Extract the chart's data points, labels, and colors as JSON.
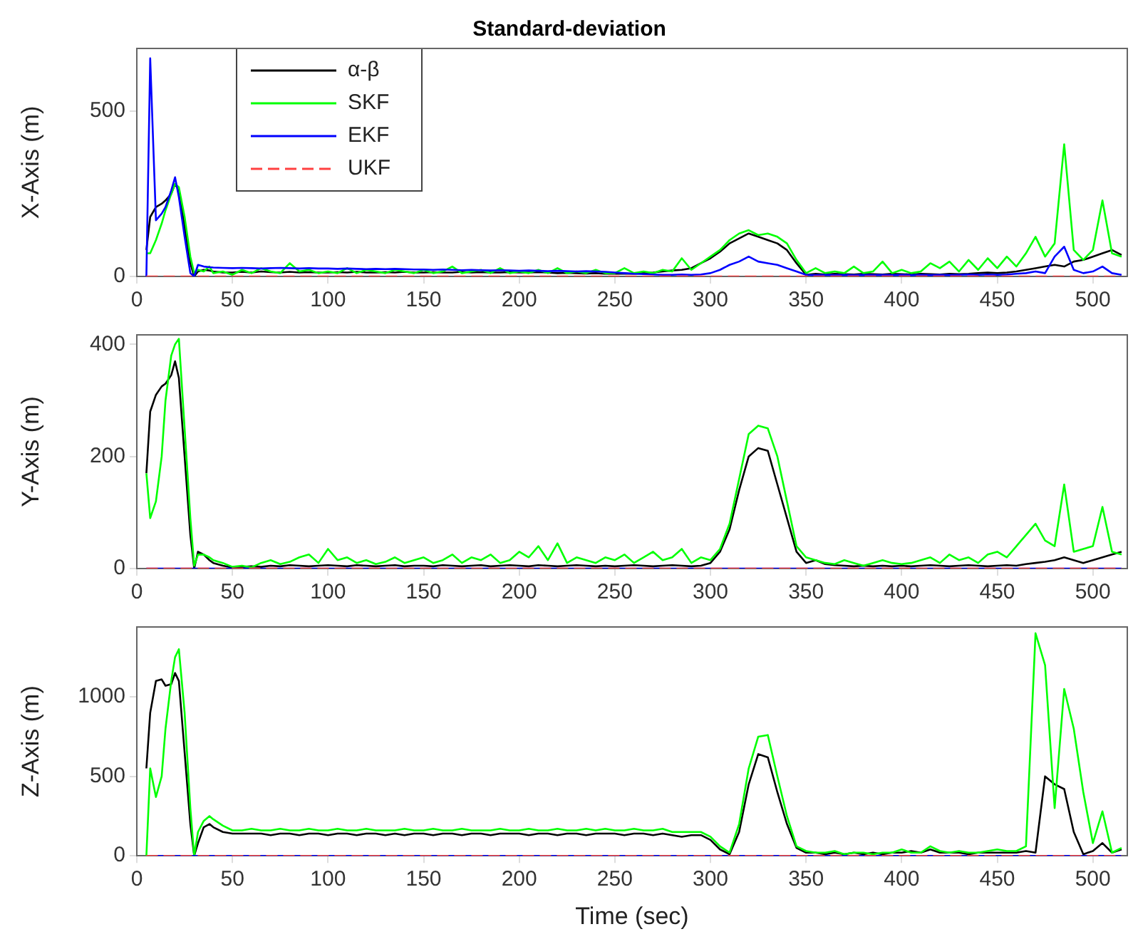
{
  "chart_data": [
    {
      "type": "line",
      "title": "Standard-deviation",
      "ylabel": "X-Axis (m)",
      "legend": "top left",
      "grid": false,
      "marker": "none",
      "xlim": [
        0,
        518
      ],
      "xticks": [
        0,
        50,
        100,
        150,
        200,
        250,
        300,
        350,
        400,
        450,
        500
      ],
      "ylim": [
        0,
        690
      ],
      "yticks": [
        0,
        500
      ],
      "x": [
        5,
        7,
        10,
        13,
        15,
        18,
        20,
        22,
        25,
        28,
        30,
        32,
        35,
        38,
        40,
        45,
        50,
        55,
        60,
        65,
        70,
        75,
        80,
        85,
        90,
        95,
        100,
        105,
        110,
        115,
        120,
        125,
        130,
        135,
        140,
        145,
        150,
        155,
        160,
        165,
        170,
        175,
        180,
        185,
        190,
        195,
        200,
        205,
        210,
        215,
        220,
        225,
        230,
        235,
        240,
        245,
        250,
        255,
        260,
        265,
        270,
        275,
        280,
        285,
        290,
        295,
        300,
        305,
        310,
        315,
        320,
        325,
        330,
        335,
        340,
        345,
        350,
        355,
        360,
        365,
        370,
        375,
        380,
        385,
        390,
        395,
        400,
        405,
        410,
        415,
        420,
        425,
        430,
        435,
        440,
        445,
        450,
        455,
        460,
        465,
        470,
        475,
        480,
        485,
        490,
        495,
        500,
        505,
        510,
        515
      ],
      "series": [
        {
          "name": "α-β",
          "color": "#000000",
          "line_style": "solid",
          "values": [
            80,
            180,
            210,
            220,
            230,
            250,
            280,
            260,
            150,
            40,
            0,
            15,
            20,
            18,
            15,
            12,
            12,
            14,
            12,
            15,
            13,
            12,
            14,
            12,
            13,
            12,
            12,
            13,
            12,
            14,
            12,
            12,
            13,
            12,
            14,
            12,
            12,
            13,
            12,
            12,
            14,
            12,
            13,
            12,
            12,
            13,
            12,
            12,
            13,
            12,
            10,
            11,
            10,
            9,
            10,
            8,
            8,
            9,
            8,
            10,
            12,
            15,
            18,
            20,
            25,
            40,
            55,
            75,
            100,
            115,
            130,
            120,
            110,
            100,
            80,
            40,
            5,
            8,
            6,
            8,
            7,
            6,
            8,
            7,
            6,
            8,
            7,
            6,
            8,
            7,
            6,
            8,
            7,
            8,
            10,
            12,
            10,
            12,
            15,
            20,
            25,
            30,
            35,
            30,
            45,
            50,
            60,
            70,
            80,
            65
          ]
        },
        {
          "name": "SKF",
          "color": "#00ff00",
          "line_style": "solid",
          "values": [
            70,
            70,
            110,
            160,
            200,
            250,
            280,
            270,
            180,
            60,
            10,
            20,
            15,
            30,
            10,
            15,
            5,
            20,
            10,
            25,
            15,
            10,
            40,
            15,
            20,
            10,
            15,
            10,
            25,
            10,
            20,
            15,
            10,
            20,
            15,
            10,
            20,
            10,
            15,
            30,
            10,
            15,
            20,
            10,
            25,
            10,
            15,
            10,
            20,
            10,
            25,
            10,
            15,
            10,
            20,
            10,
            10,
            25,
            10,
            15,
            10,
            20,
            15,
            55,
            20,
            40,
            60,
            80,
            110,
            130,
            140,
            125,
            130,
            120,
            100,
            50,
            10,
            25,
            10,
            15,
            10,
            30,
            10,
            15,
            45,
            10,
            20,
            10,
            15,
            40,
            25,
            45,
            15,
            50,
            20,
            55,
            25,
            60,
            30,
            70,
            120,
            60,
            100,
            400,
            80,
            50,
            80,
            230,
            70,
            60
          ]
        },
        {
          "name": "EKF",
          "color": "#0000ff",
          "line_style": "solid",
          "values": [
            0,
            660,
            170,
            190,
            210,
            260,
            300,
            240,
            120,
            10,
            0,
            35,
            30,
            28,
            27,
            26,
            25,
            26,
            25,
            24,
            25,
            26,
            25,
            24,
            25,
            24,
            24,
            23,
            24,
            23,
            22,
            23,
            22,
            23,
            22,
            21,
            21,
            20,
            21,
            20,
            19,
            20,
            19,
            18,
            19,
            18,
            17,
            18,
            17,
            16,
            17,
            16,
            15,
            16,
            15,
            14,
            12,
            10,
            8,
            7,
            6,
            5,
            5,
            6,
            5,
            6,
            10,
            20,
            35,
            45,
            60,
            45,
            40,
            35,
            25,
            15,
            5,
            4,
            5,
            4,
            5,
            4,
            5,
            4,
            5,
            4,
            5,
            4,
            5,
            4,
            5,
            4,
            5,
            6,
            5,
            6,
            5,
            6,
            8,
            10,
            15,
            10,
            60,
            90,
            20,
            10,
            15,
            30,
            10,
            5
          ]
        },
        {
          "name": "UKF",
          "color": "#ff4040",
          "line_style": "dashed",
          "values": [
            0,
            0,
            0,
            0,
            0,
            0,
            0,
            0,
            0,
            0,
            0,
            0,
            0,
            0,
            0,
            0,
            0,
            0,
            0,
            0,
            0,
            0,
            0,
            0,
            0,
            0,
            0,
            0,
            0,
            0,
            0,
            0,
            0,
            0,
            0,
            0,
            0,
            0,
            0,
            0,
            0,
            0,
            0,
            0,
            0,
            0,
            0,
            0,
            0,
            0,
            0,
            0,
            0,
            0,
            0,
            0,
            0,
            0,
            0,
            0,
            0,
            0,
            0,
            0,
            0,
            0,
            0,
            0,
            0,
            0,
            0,
            0,
            0,
            0,
            0,
            0,
            0,
            0,
            0,
            0,
            0,
            0,
            0,
            0,
            0,
            0,
            0,
            0,
            0,
            0,
            0,
            0,
            0,
            0,
            0,
            0,
            0,
            0,
            0,
            0,
            0,
            0,
            0,
            0,
            0,
            0,
            0,
            0,
            0,
            0
          ]
        }
      ]
    },
    {
      "type": "line",
      "ylabel": "Y-Axis (m)",
      "grid": false,
      "marker": "none",
      "xlim": [
        0,
        518
      ],
      "xticks": [
        0,
        50,
        100,
        150,
        200,
        250,
        300,
        350,
        400,
        450,
        500
      ],
      "ylim": [
        0,
        417
      ],
      "yticks": [
        0,
        200,
        400
      ],
      "x": [
        5,
        7,
        10,
        13,
        15,
        18,
        20,
        22,
        25,
        28,
        30,
        32,
        35,
        38,
        40,
        45,
        50,
        55,
        60,
        65,
        70,
        75,
        80,
        85,
        90,
        95,
        100,
        105,
        110,
        115,
        120,
        125,
        130,
        135,
        140,
        145,
        150,
        155,
        160,
        165,
        170,
        175,
        180,
        185,
        190,
        195,
        200,
        205,
        210,
        215,
        220,
        225,
        230,
        235,
        240,
        245,
        250,
        255,
        260,
        265,
        270,
        275,
        280,
        285,
        290,
        295,
        300,
        305,
        310,
        315,
        320,
        325,
        330,
        335,
        340,
        345,
        350,
        355,
        360,
        365,
        370,
        375,
        380,
        385,
        390,
        395,
        400,
        405,
        410,
        415,
        420,
        425,
        430,
        435,
        440,
        445,
        450,
        455,
        460,
        465,
        470,
        475,
        480,
        485,
        490,
        495,
        500,
        505,
        510,
        515
      ],
      "series": [
        {
          "color": "#000000",
          "line_style": "solid",
          "values": [
            170,
            280,
            310,
            325,
            330,
            345,
            370,
            340,
            200,
            60,
            0,
            30,
            25,
            15,
            10,
            5,
            2,
            3,
            4,
            3,
            5,
            4,
            6,
            5,
            4,
            5,
            6,
            5,
            4,
            6,
            5,
            4,
            5,
            6,
            4,
            5,
            5,
            4,
            6,
            5,
            4,
            5,
            6,
            4,
            5,
            6,
            5,
            4,
            6,
            5,
            4,
            5,
            6,
            5,
            4,
            5,
            4,
            5,
            6,
            5,
            4,
            5,
            6,
            5,
            4,
            5,
            10,
            30,
            70,
            140,
            200,
            215,
            210,
            150,
            90,
            30,
            10,
            15,
            8,
            6,
            5,
            4,
            5,
            4,
            5,
            4,
            5,
            4,
            5,
            6,
            5,
            4,
            5,
            6,
            5,
            4,
            5,
            6,
            5,
            8,
            10,
            12,
            15,
            20,
            15,
            10,
            15,
            20,
            25,
            30
          ]
        },
        {
          "color": "#00ff00",
          "line_style": "solid",
          "values": [
            170,
            90,
            120,
            200,
            300,
            380,
            400,
            410,
            250,
            90,
            5,
            25,
            25,
            20,
            15,
            10,
            3,
            5,
            2,
            10,
            15,
            8,
            12,
            20,
            25,
            10,
            35,
            15,
            20,
            10,
            15,
            8,
            12,
            20,
            10,
            15,
            20,
            10,
            15,
            25,
            10,
            20,
            15,
            25,
            10,
            15,
            30,
            20,
            40,
            15,
            45,
            10,
            20,
            15,
            10,
            20,
            15,
            25,
            10,
            20,
            30,
            15,
            20,
            35,
            10,
            20,
            15,
            35,
            80,
            160,
            240,
            255,
            250,
            200,
            120,
            40,
            20,
            15,
            10,
            8,
            15,
            10,
            5,
            10,
            15,
            10,
            8,
            10,
            15,
            20,
            10,
            25,
            15,
            20,
            10,
            25,
            30,
            20,
            40,
            60,
            80,
            50,
            40,
            150,
            30,
            35,
            40,
            110,
            30,
            25
          ]
        },
        {
          "color": "#0000ff",
          "line_style": "solid",
          "values": [
            0,
            0,
            0,
            0,
            0,
            0,
            0,
            0,
            0,
            0,
            0,
            0,
            0,
            0,
            0,
            0,
            0,
            0,
            0,
            0,
            0,
            0,
            0,
            0,
            0,
            0,
            0,
            0,
            0,
            0,
            0,
            0,
            0,
            0,
            0,
            0,
            0,
            0,
            0,
            0,
            0,
            0,
            0,
            0,
            0,
            0,
            0,
            0,
            0,
            0,
            0,
            0,
            0,
            0,
            0,
            0,
            0,
            0,
            0,
            0,
            0,
            0,
            0,
            0,
            0,
            0,
            0,
            0,
            0,
            0,
            0,
            0,
            0,
            0,
            0,
            0,
            0,
            0,
            0,
            0,
            0,
            0,
            0,
            0,
            0,
            0,
            0,
            0,
            0,
            0,
            0,
            0,
            0,
            0,
            0,
            0,
            0,
            0,
            0,
            0,
            0,
            0,
            0,
            0,
            0,
            0,
            0,
            0,
            0,
            0
          ]
        },
        {
          "color": "#ff4040",
          "line_style": "dashed",
          "values": [
            0,
            0,
            0,
            0,
            0,
            0,
            0,
            0,
            0,
            0,
            0,
            0,
            0,
            0,
            0,
            0,
            0,
            0,
            0,
            0,
            0,
            0,
            0,
            0,
            0,
            0,
            0,
            0,
            0,
            0,
            0,
            0,
            0,
            0,
            0,
            0,
            0,
            0,
            0,
            0,
            0,
            0,
            0,
            0,
            0,
            0,
            0,
            0,
            0,
            0,
            0,
            0,
            0,
            0,
            0,
            0,
            0,
            0,
            0,
            0,
            0,
            0,
            0,
            0,
            0,
            0,
            0,
            0,
            0,
            0,
            0,
            0,
            0,
            0,
            0,
            0,
            0,
            0,
            0,
            0,
            0,
            0,
            0,
            0,
            0,
            0,
            0,
            0,
            0,
            0,
            0,
            0,
            0,
            0,
            0,
            0,
            0,
            0,
            0,
            0,
            0,
            0,
            0,
            0,
            0,
            0,
            0,
            0,
            0,
            0
          ]
        }
      ]
    },
    {
      "type": "line",
      "ylabel": "Z-Axis (m)",
      "xlabel": "Time (sec)",
      "grid": false,
      "marker": "none",
      "xlim": [
        0,
        518
      ],
      "xticks": [
        0,
        50,
        100,
        150,
        200,
        250,
        300,
        350,
        400,
        450,
        500
      ],
      "ylim": [
        0,
        1440
      ],
      "yticks": [
        0,
        500,
        1000
      ],
      "x": [
        5,
        7,
        10,
        13,
        15,
        18,
        20,
        22,
        25,
        28,
        30,
        32,
        35,
        38,
        40,
        45,
        50,
        55,
        60,
        65,
        70,
        75,
        80,
        85,
        90,
        95,
        100,
        105,
        110,
        115,
        120,
        125,
        130,
        135,
        140,
        145,
        150,
        155,
        160,
        165,
        170,
        175,
        180,
        185,
        190,
        195,
        200,
        205,
        210,
        215,
        220,
        225,
        230,
        235,
        240,
        245,
        250,
        255,
        260,
        265,
        270,
        275,
        280,
        285,
        290,
        295,
        300,
        305,
        310,
        315,
        320,
        325,
        330,
        335,
        340,
        345,
        350,
        355,
        360,
        365,
        370,
        375,
        380,
        385,
        390,
        395,
        400,
        405,
        410,
        415,
        420,
        425,
        430,
        435,
        440,
        445,
        450,
        455,
        460,
        465,
        470,
        475,
        480,
        485,
        490,
        495,
        500,
        505,
        510,
        515
      ],
      "series": [
        {
          "color": "#000000",
          "line_style": "solid",
          "values": [
            550,
            900,
            1100,
            1110,
            1070,
            1080,
            1150,
            1100,
            650,
            200,
            0,
            80,
            180,
            200,
            180,
            150,
            140,
            140,
            140,
            140,
            130,
            140,
            140,
            130,
            140,
            140,
            130,
            140,
            140,
            130,
            140,
            140,
            130,
            140,
            130,
            140,
            140,
            130,
            140,
            140,
            130,
            140,
            140,
            130,
            140,
            140,
            140,
            130,
            140,
            140,
            130,
            140,
            140,
            130,
            140,
            140,
            140,
            130,
            140,
            140,
            130,
            140,
            130,
            120,
            130,
            130,
            100,
            40,
            10,
            150,
            450,
            640,
            620,
            400,
            200,
            50,
            20,
            20,
            10,
            20,
            10,
            20,
            10,
            20,
            10,
            20,
            20,
            30,
            20,
            40,
            20,
            20,
            20,
            10,
            20,
            20,
            20,
            20,
            20,
            30,
            20,
            500,
            450,
            420,
            150,
            10,
            30,
            80,
            20,
            40
          ]
        },
        {
          "color": "#00ff00",
          "line_style": "solid",
          "values": [
            0,
            550,
            370,
            500,
            800,
            1100,
            1250,
            1300,
            900,
            300,
            0,
            150,
            220,
            250,
            230,
            190,
            160,
            160,
            170,
            160,
            160,
            170,
            160,
            160,
            170,
            160,
            160,
            170,
            160,
            160,
            170,
            160,
            160,
            160,
            170,
            160,
            160,
            170,
            160,
            160,
            170,
            160,
            160,
            160,
            170,
            160,
            160,
            170,
            160,
            160,
            170,
            160,
            160,
            170,
            160,
            170,
            160,
            160,
            170,
            160,
            160,
            170,
            150,
            150,
            150,
            150,
            120,
            60,
            20,
            200,
            550,
            750,
            760,
            500,
            250,
            60,
            30,
            20,
            20,
            30,
            10,
            20,
            20,
            10,
            20,
            20,
            40,
            20,
            20,
            60,
            30,
            20,
            30,
            20,
            20,
            30,
            40,
            30,
            30,
            60,
            1400,
            1200,
            300,
            1050,
            800,
            400,
            80,
            280,
            20,
            50
          ]
        },
        {
          "color": "#0000ff",
          "line_style": "solid",
          "values": [
            null,
            null,
            0,
            0,
            0,
            0,
            0,
            0,
            0,
            0,
            0,
            0,
            0,
            0,
            0,
            0,
            0,
            0,
            0,
            0,
            0,
            0,
            0,
            0,
            0,
            0,
            0,
            0,
            0,
            0,
            0,
            0,
            0,
            0,
            0,
            0,
            0,
            0,
            0,
            0,
            0,
            0,
            0,
            0,
            0,
            0,
            0,
            0,
            0,
            0,
            0,
            0,
            0,
            0,
            0,
            0,
            0,
            0,
            0,
            0,
            0,
            0,
            0,
            0,
            0,
            0,
            0,
            0,
            0,
            0,
            0,
            0,
            0,
            0,
            0,
            0,
            0,
            0,
            0,
            0,
            0,
            0,
            0,
            0,
            0,
            0,
            0,
            0,
            0,
            0,
            0,
            0,
            0,
            0,
            0,
            0,
            0,
            0,
            0,
            0,
            0,
            0,
            0,
            0,
            0,
            0,
            0,
            0,
            0,
            0
          ]
        },
        {
          "color": "#ff4040",
          "line_style": "dashed",
          "values": [
            0,
            0,
            0,
            0,
            0,
            0,
            0,
            0,
            0,
            0,
            0,
            0,
            0,
            0,
            0,
            0,
            0,
            0,
            0,
            0,
            0,
            0,
            0,
            0,
            0,
            0,
            0,
            0,
            0,
            0,
            0,
            0,
            0,
            0,
            0,
            0,
            0,
            0,
            0,
            0,
            0,
            0,
            0,
            0,
            0,
            0,
            0,
            0,
            0,
            0,
            0,
            0,
            0,
            0,
            0,
            0,
            0,
            0,
            0,
            0,
            0,
            0,
            0,
            0,
            0,
            0,
            0,
            0,
            0,
            0,
            0,
            0,
            0,
            0,
            0,
            0,
            0,
            0,
            0,
            0,
            0,
            0,
            0,
            0,
            0,
            0,
            0,
            0,
            0,
            0,
            0,
            0,
            0,
            0,
            0,
            0,
            0,
            0,
            0,
            0,
            0,
            0,
            0,
            0,
            0,
            0,
            0,
            0,
            0,
            0
          ]
        }
      ]
    }
  ]
}
